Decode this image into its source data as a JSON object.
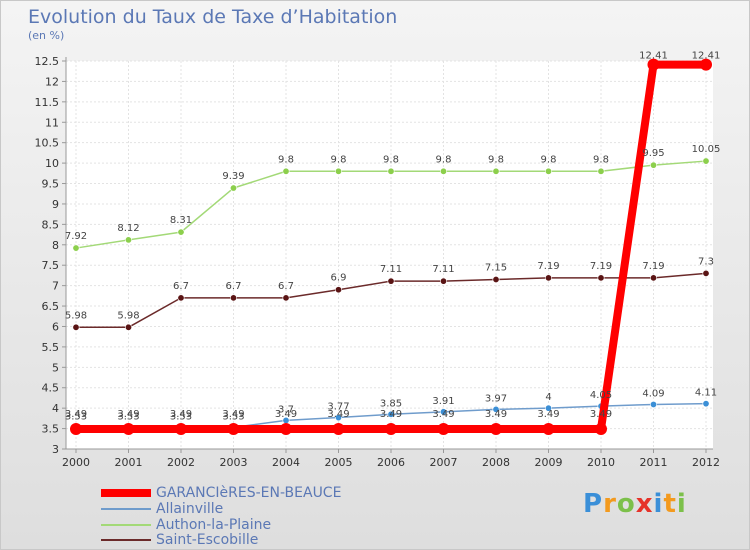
{
  "header": {
    "title": "Evolution du Taux de Taxe d’Habitation",
    "subtitle": "(en %)"
  },
  "logo": {
    "text": "Proxiti",
    "letters": [
      "P",
      "r",
      "o",
      "x",
      "i",
      "t",
      "i"
    ]
  },
  "colors": {
    "garancieres": "#ff0000",
    "allainville": "#6f9ccc",
    "authon": "#a3d977",
    "saint_escobille": "#6b2a2a",
    "axis": "#999999"
  },
  "chart_data": {
    "type": "line",
    "title": "Evolution du Taux de Taxe d’Habitation",
    "ylabel": "(en %)",
    "xlabel": "",
    "x": [
      "2000",
      "2001",
      "2002",
      "2003",
      "2004",
      "2005",
      "2006",
      "2007",
      "2008",
      "2009",
      "2010",
      "2011",
      "2012"
    ],
    "ylim": [
      3,
      12.5
    ],
    "yticks": [
      "3",
      "3.5",
      "4",
      "4.5",
      "5",
      "5.5",
      "6",
      "6.5",
      "7",
      "7.5",
      "8",
      "8.5",
      "9",
      "9.5",
      "10",
      "10.5",
      "11",
      "11.5",
      "12",
      "12.5"
    ],
    "grid": true,
    "legend_position": "bottom-left",
    "series": [
      {
        "key": "garancieres",
        "name": "GARANCIèRES-EN-BEAUCE",
        "values": [
          3.49,
          3.49,
          3.49,
          3.49,
          3.49,
          3.49,
          3.49,
          3.49,
          3.49,
          3.49,
          3.49,
          12.41,
          12.41
        ],
        "labels": [
          "3.49",
          "3.49",
          "3.49",
          "3.49",
          "3.49",
          "3.49",
          "3.49",
          "3.49",
          "3.49",
          "3.49",
          "3.49",
          "12.41",
          "12.41"
        ]
      },
      {
        "key": "allainville",
        "name": "Allainville",
        "values": [
          3.53,
          3.53,
          3.53,
          3.53,
          3.7,
          3.77,
          3.85,
          3.91,
          3.97,
          4.0,
          4.05,
          4.09,
          4.11
        ],
        "labels": [
          "3.53",
          "3.53",
          "3.53",
          "3.53",
          "3.7",
          "3.77",
          "3.85",
          "3.91",
          "3.97",
          "4",
          "4.05",
          "4.09",
          "4.11"
        ]
      },
      {
        "key": "authon",
        "name": "Authon-la-Plaine",
        "values": [
          7.92,
          8.12,
          8.31,
          9.39,
          9.8,
          9.8,
          9.8,
          9.8,
          9.8,
          9.8,
          9.8,
          9.95,
          10.05
        ],
        "labels": [
          "7.92",
          "8.12",
          "8.31",
          "9.39",
          "9.8",
          "9.8",
          "9.8",
          "9.8",
          "9.8",
          "9.8",
          "9.8",
          "9.95",
          "10.05"
        ]
      },
      {
        "key": "saint_escobille",
        "name": "Saint-Escobille",
        "values": [
          5.98,
          5.98,
          6.7,
          6.7,
          6.7,
          6.9,
          7.11,
          7.11,
          7.15,
          7.19,
          7.19,
          7.19,
          7.3
        ],
        "labels": [
          "5.98",
          "5.98",
          "6.7",
          "6.7",
          "6.7",
          "6.9",
          "7.11",
          "7.11",
          "7.15",
          "7.19",
          "7.19",
          "7.19",
          "7.3"
        ]
      }
    ]
  }
}
